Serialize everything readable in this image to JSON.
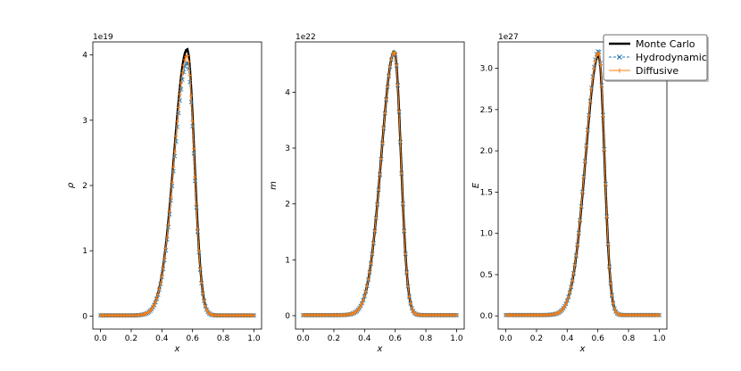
{
  "chart_data": [
    {
      "type": "line",
      "title": "",
      "xlabel": "x",
      "ylabel": "ρ",
      "offset_text": "1e19",
      "xlim": [
        -0.05,
        1.05
      ],
      "ylim": [
        -0.2,
        4.2
      ],
      "xticks": [
        0.0,
        0.2,
        0.4,
        0.6,
        0.8,
        1.0
      ],
      "xtick_labels": [
        "0.0",
        "0.2",
        "0.4",
        "0.6",
        "0.8",
        "1.0"
      ],
      "yticks": [
        0,
        1,
        2,
        3,
        4
      ],
      "ytick_labels": [
        "0",
        "1",
        "2",
        "3",
        "4"
      ],
      "series": [
        {
          "name": "Monte Carlo",
          "peak_x": 0.565,
          "peak": 4.08,
          "left_width": 0.085,
          "right_width": 0.046
        },
        {
          "name": "Hydrodynamic",
          "peak_x": 0.565,
          "peak": 3.87,
          "left_width": 0.085,
          "right_width": 0.046
        },
        {
          "name": "Diffusive",
          "peak_x": 0.565,
          "peak": 3.98,
          "left_width": 0.085,
          "right_width": 0.046
        }
      ]
    },
    {
      "type": "line",
      "title": "",
      "xlabel": "x",
      "ylabel": "m",
      "offset_text": "1e22",
      "xlim": [
        -0.05,
        1.05
      ],
      "ylim": [
        -0.24,
        4.9
      ],
      "xticks": [
        0.0,
        0.2,
        0.4,
        0.6,
        0.8,
        1.0
      ],
      "xtick_labels": [
        "0.0",
        "0.2",
        "0.4",
        "0.6",
        "0.8",
        "1.0"
      ],
      "yticks": [
        0,
        1,
        2,
        3,
        4
      ],
      "ytick_labels": [
        "0",
        "1",
        "2",
        "3",
        "4"
      ],
      "series": [
        {
          "name": "Monte Carlo",
          "peak_x": 0.595,
          "peak": 4.72,
          "left_width": 0.085,
          "right_width": 0.042
        },
        {
          "name": "Hydrodynamic",
          "peak_x": 0.595,
          "peak": 4.7,
          "left_width": 0.085,
          "right_width": 0.042
        },
        {
          "name": "Diffusive",
          "peak_x": 0.595,
          "peak": 4.71,
          "left_width": 0.085,
          "right_width": 0.042
        }
      ]
    },
    {
      "type": "line",
      "title": "",
      "xlabel": "x",
      "ylabel": "E",
      "offset_text": "1e27",
      "xlim": [
        -0.05,
        1.05
      ],
      "ylim": [
        -0.16,
        3.32
      ],
      "xticks": [
        0.0,
        0.2,
        0.4,
        0.6,
        0.8,
        1.0
      ],
      "xtick_labels": [
        "0.0",
        "0.2",
        "0.4",
        "0.6",
        "0.8",
        "1.0"
      ],
      "yticks": [
        0.0,
        0.5,
        1.0,
        1.5,
        2.0,
        2.5,
        3.0
      ],
      "ytick_labels": [
        "0.0",
        "0.5",
        "1.0",
        "1.5",
        "2.0",
        "2.5",
        "3.0"
      ],
      "series": [
        {
          "name": "Monte Carlo",
          "peak_x": 0.605,
          "peak": 3.15,
          "left_width": 0.085,
          "right_width": 0.038
        },
        {
          "name": "Hydrodynamic",
          "peak_x": 0.605,
          "peak": 3.2,
          "left_width": 0.085,
          "right_width": 0.038
        },
        {
          "name": "Diffusive",
          "peak_x": 0.605,
          "peak": 3.18,
          "left_width": 0.085,
          "right_width": 0.038
        }
      ]
    }
  ],
  "legend": {
    "placement": "top-right",
    "items": [
      {
        "label": "Monte Carlo",
        "color": "#000000",
        "marker": "none",
        "style": "solid-thick"
      },
      {
        "label": "Hydrodynamic",
        "color": "#1f77b4",
        "marker": "x",
        "style": "dashed"
      },
      {
        "label": "Diffusive",
        "color": "#ff7f0e",
        "marker": "+",
        "style": "solid"
      }
    ]
  }
}
